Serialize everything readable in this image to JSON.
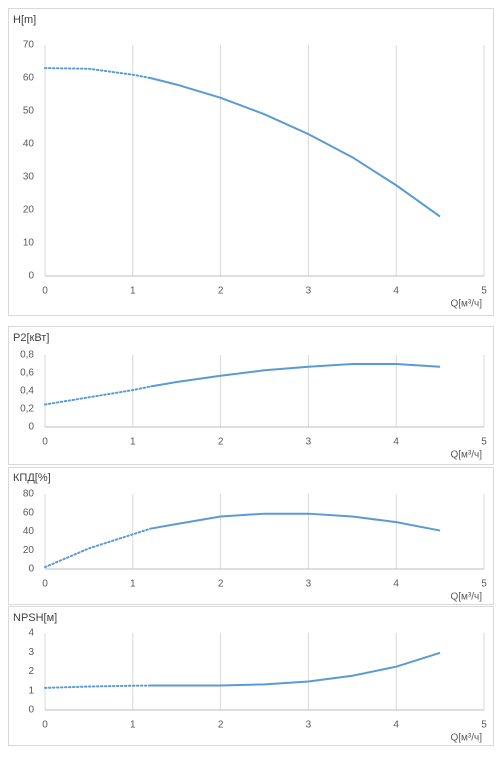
{
  "chart_data": [
    {
      "type": "line",
      "title": "H[m]",
      "x_label": "Q[м³/ч]",
      "color": "#5b9bd5",
      "dotted_to_x": 1.2,
      "x": [
        0,
        0.5,
        1,
        1.2,
        1.5,
        2,
        2.5,
        3,
        3.5,
        4,
        4.5
      ],
      "values": [
        63,
        62.8,
        61,
        60,
        58,
        54,
        49,
        43,
        36,
        27.5,
        18
      ],
      "xlim": [
        0,
        5
      ],
      "xticks": [
        0,
        1,
        2,
        3,
        4,
        5
      ],
      "ylim": [
        0,
        70
      ],
      "yticks": [
        0,
        10,
        20,
        30,
        40,
        50,
        60,
        70
      ],
      "grid": true
    },
    {
      "type": "line",
      "title": "P2[кВт]",
      "x_label": "Q[м³/ч]",
      "color": "#5b9bd5",
      "dotted_to_x": 1.2,
      "x": [
        0,
        0.5,
        1,
        1.2,
        1.5,
        2,
        2.5,
        3,
        3.5,
        4,
        4.5
      ],
      "values": [
        0.25,
        0.33,
        0.41,
        0.45,
        0.5,
        0.57,
        0.63,
        0.67,
        0.7,
        0.7,
        0.67
      ],
      "xlim": [
        0,
        5
      ],
      "xticks": [
        0,
        1,
        2,
        3,
        4,
        5
      ],
      "ylim": [
        0,
        0.8
      ],
      "yticks": [
        0,
        {
          "value": 0.2,
          "label": "0,2"
        },
        {
          "value": 0.4,
          "label": "0,4"
        },
        {
          "value": 0.6,
          "label": "0,6"
        },
        {
          "value": 0.8,
          "label": "0,8"
        }
      ],
      "grid": true
    },
    {
      "type": "line",
      "title": "КПД[%]",
      "x_label": "Q[м³/ч]",
      "color": "#5b9bd5",
      "dotted_to_x": 1.2,
      "x": [
        0,
        0.5,
        1,
        1.2,
        1.5,
        2,
        2.5,
        3,
        3.5,
        4,
        4.5
      ],
      "values": [
        2,
        22,
        37,
        43,
        48,
        56,
        59,
        59,
        56,
        50,
        41
      ],
      "xlim": [
        0,
        5
      ],
      "xticks": [
        0,
        1,
        2,
        3,
        4,
        5
      ],
      "ylim": [
        0,
        80
      ],
      "yticks": [
        0,
        20,
        40,
        60,
        80
      ],
      "grid": true
    },
    {
      "type": "line",
      "title": "NPSH[м]",
      "x_label": "Q[м³/ч]",
      "color": "#5b9bd5",
      "dotted_to_x": 1.2,
      "x": [
        0,
        0.5,
        1,
        1.2,
        1.5,
        2,
        2.5,
        3,
        3.5,
        4,
        4.5
      ],
      "values": [
        1.15,
        1.22,
        1.26,
        1.27,
        1.27,
        1.27,
        1.33,
        1.48,
        1.78,
        2.25,
        2.97
      ],
      "xlim": [
        0,
        5
      ],
      "xticks": [
        0,
        1,
        2,
        3,
        4,
        5
      ],
      "ylim": [
        0,
        4
      ],
      "yticks": [
        0,
        1,
        2,
        3,
        4
      ],
      "grid": true
    }
  ]
}
